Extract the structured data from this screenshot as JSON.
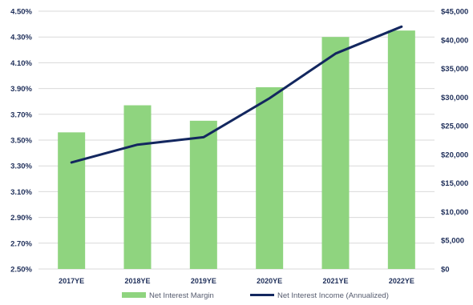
{
  "chart_data": {
    "type": "bar+line",
    "title": "",
    "categories": [
      "2017YE",
      "2018YE",
      "2019YE",
      "2020YE",
      "2021YE",
      "2022YE"
    ],
    "series": [
      {
        "name": "Net Interest Margin",
        "type": "bar",
        "axis": "left",
        "color": "#8fd47f",
        "values": [
          3.56,
          3.77,
          3.65,
          3.91,
          4.3,
          4.35
        ]
      },
      {
        "name": "Net Interest Income (Annualized)",
        "type": "line",
        "axis": "right",
        "color": "#13275f",
        "values": [
          18600,
          21700,
          23000,
          29800,
          37600,
          42300
        ]
      }
    ],
    "y_left": {
      "min": 2.5,
      "max": 4.5,
      "ticks": [
        2.5,
        2.7,
        2.9,
        3.1,
        3.3,
        3.5,
        3.7,
        3.9,
        4.1,
        4.3,
        4.5
      ],
      "tick_labels": [
        "2.50%",
        "2.70%",
        "2.90%",
        "3.10%",
        "3.30%",
        "3.50%",
        "3.70%",
        "3.90%",
        "4.10%",
        "4.30%",
        "4.50%"
      ]
    },
    "y_right": {
      "min": 0,
      "max": 45000,
      "ticks": [
        0,
        5000,
        10000,
        15000,
        20000,
        25000,
        30000,
        35000,
        40000,
        45000
      ],
      "tick_labels": [
        "$0",
        "$5,000",
        "$10,000",
        "$15,000",
        "$20,000",
        "$25,000",
        "$30,000",
        "$35,000",
        "$40,000",
        "$45,000"
      ]
    },
    "grid": true,
    "legend_position": "bottom",
    "legend": [
      {
        "label": "Net Interest Margin",
        "kind": "bar",
        "color": "#8fd47f"
      },
      {
        "label": "Net Interest Income (Annualized)",
        "kind": "line",
        "color": "#13275f"
      }
    ]
  }
}
